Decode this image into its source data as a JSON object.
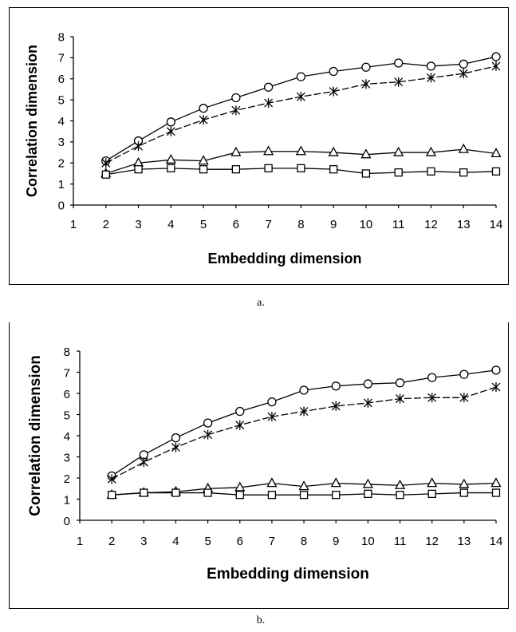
{
  "captions": {
    "a": "a.",
    "b": "b."
  },
  "chart_data": [
    {
      "id": "a",
      "type": "line",
      "xlabel": "Embedding dimension",
      "ylabel": "Correlation dimension",
      "xlim": [
        1,
        14
      ],
      "ylim": [
        0,
        8
      ],
      "xticks": [
        1,
        2,
        3,
        4,
        5,
        6,
        7,
        8,
        9,
        10,
        11,
        12,
        13,
        14
      ],
      "yticks": [
        0,
        1,
        2,
        3,
        4,
        5,
        6,
        7,
        8
      ],
      "grid": false,
      "legend": "none",
      "x": [
        2,
        3,
        4,
        5,
        6,
        7,
        8,
        9,
        10,
        11,
        12,
        13,
        14
      ],
      "series": [
        {
          "marker": "circle",
          "values": [
            2.1,
            3.05,
            3.95,
            4.6,
            5.1,
            5.6,
            6.1,
            6.35,
            6.55,
            6.75,
            6.6,
            6.7,
            7.05
          ]
        },
        {
          "marker": "asterisk",
          "values": [
            2.0,
            2.8,
            3.5,
            4.05,
            4.5,
            4.85,
            5.15,
            5.4,
            5.75,
            5.85,
            6.05,
            6.25,
            6.6
          ]
        },
        {
          "marker": "triangle",
          "values": [
            1.5,
            2.0,
            2.15,
            2.1,
            2.5,
            2.55,
            2.55,
            2.5,
            2.4,
            2.5,
            2.5,
            2.65,
            2.45
          ]
        },
        {
          "marker": "square",
          "values": [
            1.45,
            1.7,
            1.75,
            1.7,
            1.7,
            1.75,
            1.75,
            1.7,
            1.5,
            1.55,
            1.6,
            1.55,
            1.6
          ]
        }
      ]
    },
    {
      "id": "b",
      "type": "line",
      "xlabel": "Embedding dimension",
      "ylabel": "Correlation dimension",
      "xlim": [
        1,
        14
      ],
      "ylim": [
        0,
        8
      ],
      "xticks": [
        1,
        2,
        3,
        4,
        5,
        6,
        7,
        8,
        9,
        10,
        11,
        12,
        13,
        14
      ],
      "yticks": [
        0,
        1,
        2,
        3,
        4,
        5,
        6,
        7,
        8
      ],
      "grid": false,
      "legend": "none",
      "x": [
        2,
        3,
        4,
        5,
        6,
        7,
        8,
        9,
        10,
        11,
        12,
        13,
        14
      ],
      "series": [
        {
          "marker": "circle",
          "values": [
            2.1,
            3.1,
            3.9,
            4.6,
            5.15,
            5.6,
            6.15,
            6.35,
            6.45,
            6.5,
            6.75,
            6.9,
            7.1
          ]
        },
        {
          "marker": "asterisk",
          "values": [
            1.95,
            2.75,
            3.45,
            4.05,
            4.5,
            4.9,
            5.15,
            5.4,
            5.55,
            5.75,
            5.8,
            5.8,
            6.3
          ]
        },
        {
          "marker": "triangle",
          "values": [
            1.2,
            1.3,
            1.35,
            1.5,
            1.55,
            1.75,
            1.6,
            1.75,
            1.7,
            1.65,
            1.75,
            1.7,
            1.75
          ]
        },
        {
          "marker": "square",
          "values": [
            1.2,
            1.3,
            1.3,
            1.3,
            1.2,
            1.2,
            1.2,
            1.2,
            1.25,
            1.2,
            1.25,
            1.3,
            1.3
          ]
        }
      ]
    }
  ]
}
